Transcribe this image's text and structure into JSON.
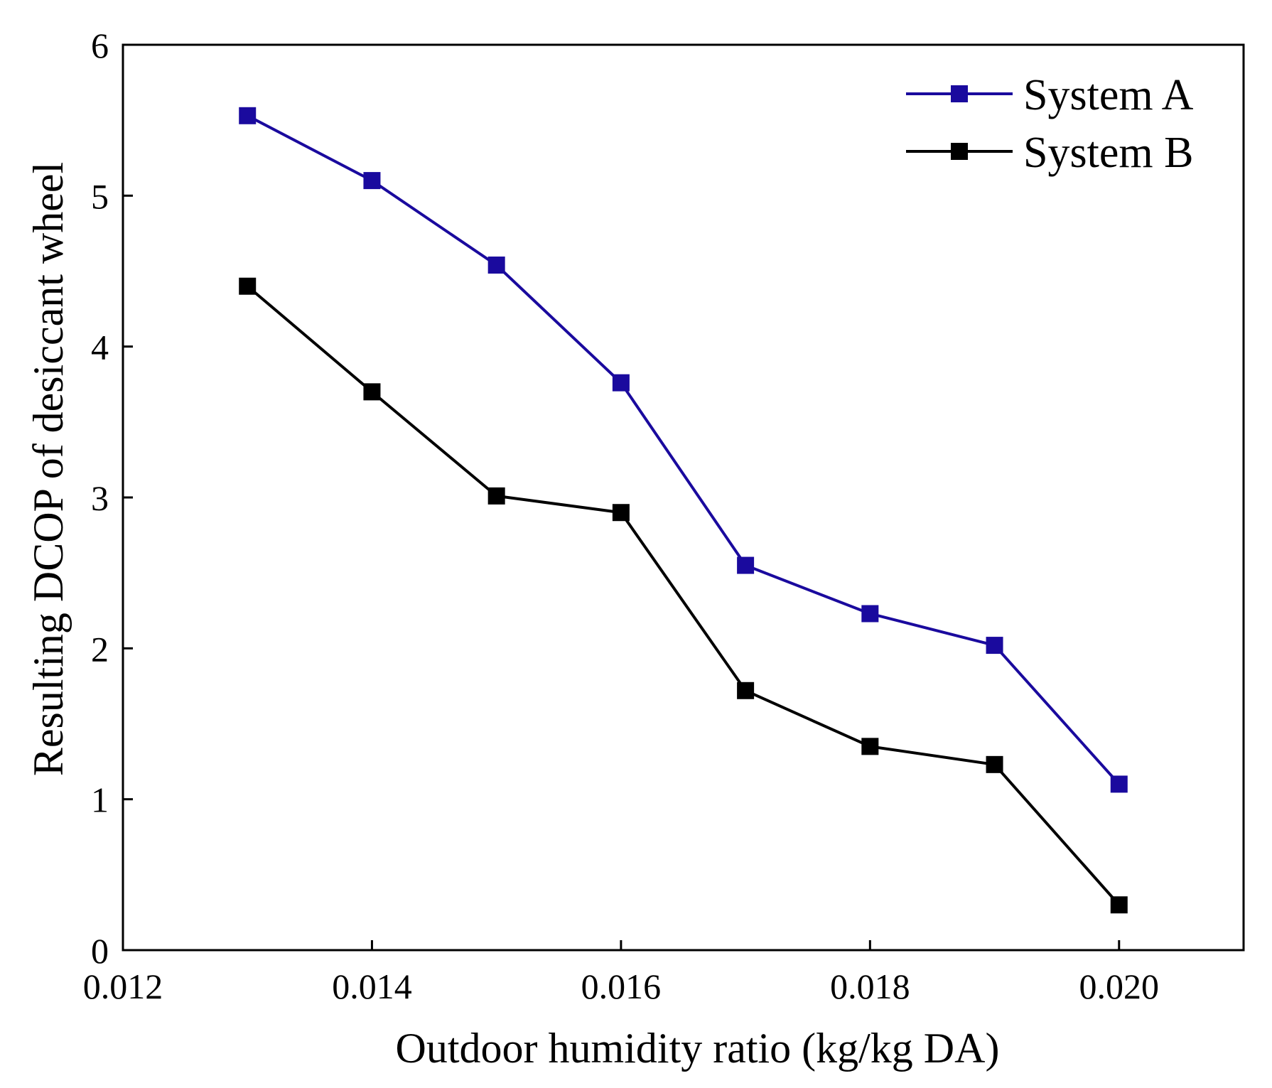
{
  "chart_data": {
    "type": "line",
    "title": "",
    "xlabel": "Outdoor humidity ratio (kg/kg DA)",
    "ylabel": "Resulting DCOP of desiccant wheel",
    "xlim": [
      0.012,
      0.021
    ],
    "ylim": [
      0,
      6
    ],
    "x_ticks": [
      "0.012",
      "0.014",
      "0.016",
      "0.018",
      "0.020"
    ],
    "y_ticks": [
      "0",
      "1",
      "2",
      "3",
      "4",
      "5",
      "6"
    ],
    "grid": false,
    "legend_position": "top-right",
    "x": [
      0.013,
      0.014,
      0.015,
      0.016,
      0.017,
      0.018,
      0.019,
      0.02
    ],
    "series": [
      {
        "name": "System A",
        "color": "#1a0a9e",
        "marker": "square",
        "values": [
          5.53,
          5.1,
          4.54,
          3.76,
          2.55,
          2.23,
          2.02,
          1.1
        ]
      },
      {
        "name": "System B",
        "color": "#000000",
        "marker": "square",
        "values": [
          4.4,
          3.7,
          3.01,
          2.9,
          1.72,
          1.35,
          1.23,
          0.3
        ]
      }
    ]
  }
}
